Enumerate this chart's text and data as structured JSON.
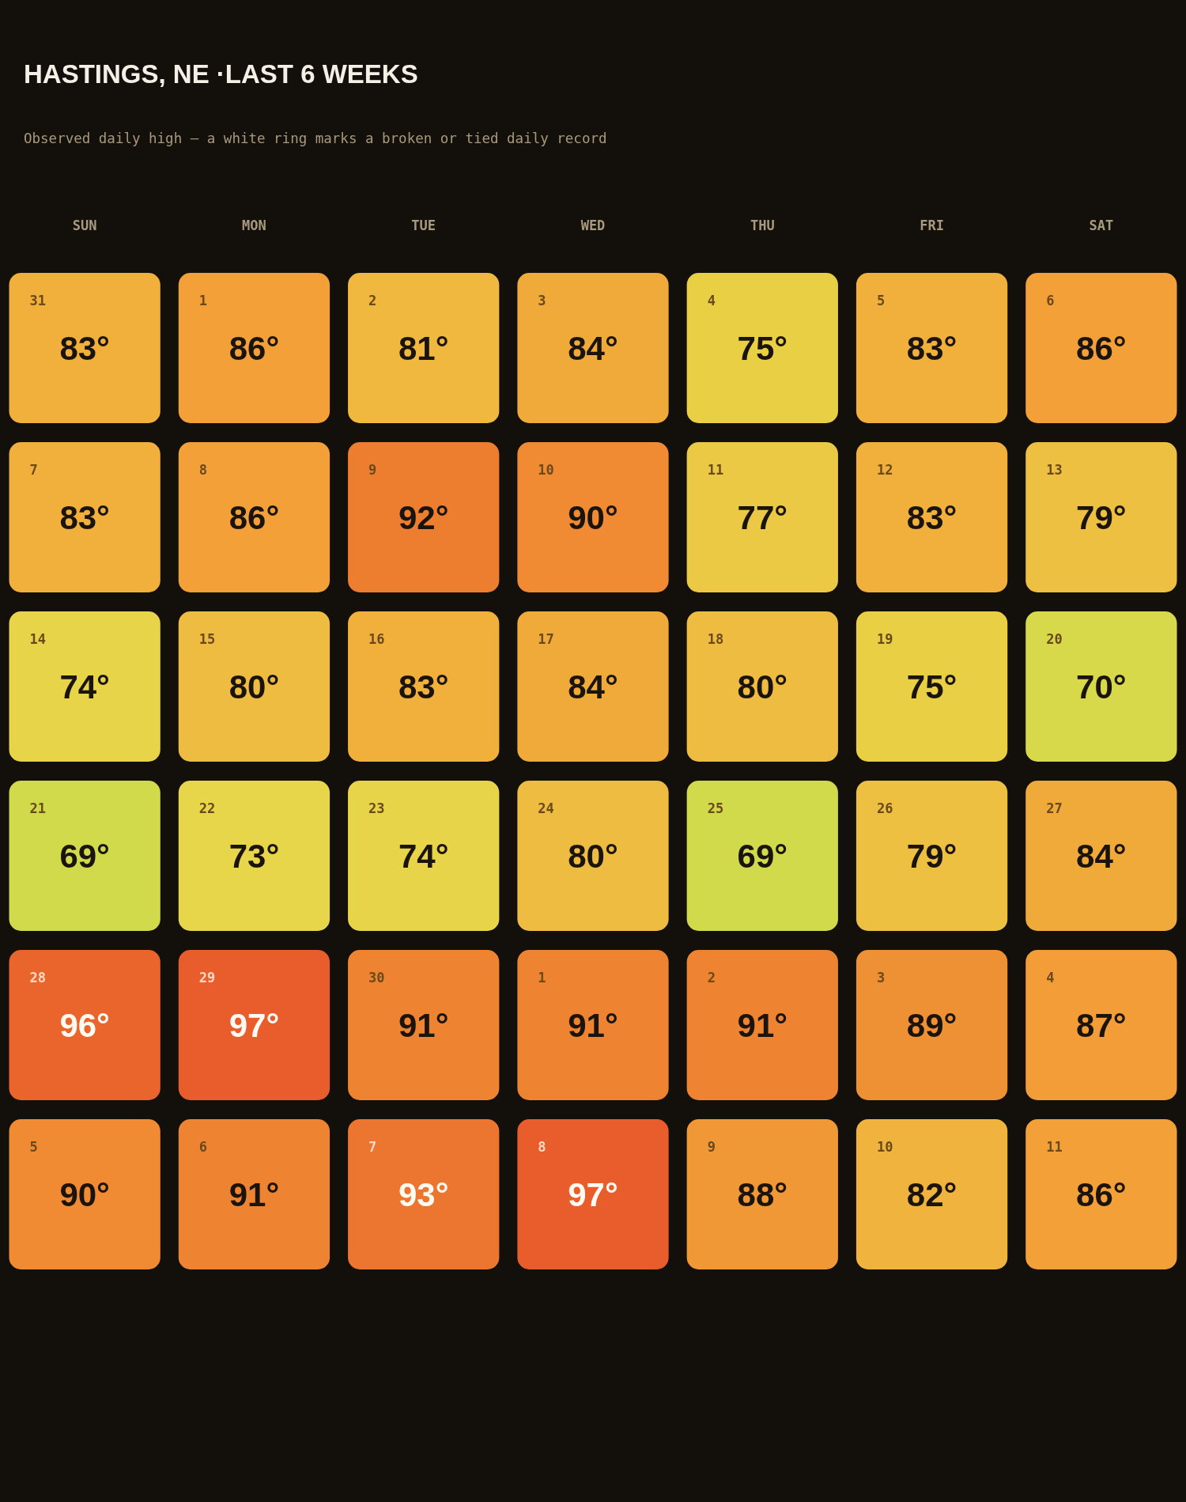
{
  "chart_data": {
    "type": "heatmap",
    "title": "HASTINGS, NE ·LAST 6 WEEKS",
    "subtitle": "Observed daily high — a white ring marks a broken or tied daily record",
    "categories": [
      "SUN",
      "MON",
      "TUE",
      "WED",
      "THU",
      "FRI",
      "SAT"
    ],
    "y_categories": [
      null,
      null,
      null,
      null,
      null,
      null
    ],
    "cells": [
      [
        83,
        86,
        81,
        84,
        75,
        83,
        86
      ],
      [
        83,
        86,
        92,
        90,
        77,
        83,
        79
      ],
      [
        74,
        80,
        83,
        84,
        80,
        75,
        70
      ],
      [
        69,
        73,
        74,
        80,
        69,
        79,
        84
      ],
      [
        96,
        97,
        91,
        91,
        91,
        89,
        87
      ],
      [
        90,
        91,
        93,
        97,
        88,
        82,
        86
      ]
    ],
    "cell_labels": [
      [
        "83°",
        "86°",
        "81°",
        "84°",
        "75°",
        "83°",
        "86°"
      ],
      [
        "83°",
        "86°",
        "92°",
        "90°",
        "77°",
        "83°",
        "79°"
      ],
      [
        "74°",
        "80°",
        "83°",
        "84°",
        "80°",
        "75°",
        "70°"
      ],
      [
        "69°",
        "73°",
        "74°",
        "80°",
        "69°",
        "79°",
        "84°"
      ],
      [
        "96°",
        "97°",
        "91°",
        "91°",
        "91°",
        "89°",
        "87°"
      ],
      [
        "90°",
        "91°",
        "93°",
        "97°",
        "88°",
        "82°",
        "86°"
      ]
    ],
    "annotations": [
      "31",
      "1",
      "2",
      "3",
      "4",
      "5",
      "6",
      "7",
      "8",
      "9",
      "10",
      "11",
      "12",
      "13",
      "14",
      "15",
      "16",
      "17",
      "18",
      "19",
      "20",
      "21",
      "22",
      "23",
      "24",
      "25",
      "26",
      "27",
      "28",
      "29",
      "30",
      "1",
      "2",
      "3",
      "4",
      "5",
      "6",
      "7",
      "8",
      "9",
      "10",
      "11"
    ],
    "colors": [
      [
        "#f0b03b",
        "#f2a037",
        "#f0b83e",
        "#f0aa3a",
        "#e9cf44",
        "#f0b03b",
        "#f2a037"
      ],
      [
        "#f0b03b",
        "#f2a037",
        "#ed7e30",
        "#f08a33",
        "#ecc945",
        "#f0b03b",
        "#edc042"
      ],
      [
        "#e8d448",
        "#eebc40",
        "#f0b03b",
        "#f0aa3a",
        "#eebc40",
        "#e9cf44",
        "#d7d94b"
      ],
      [
        "#d0da4a",
        "#e8d64a",
        "#e8d448",
        "#eebc40",
        "#d0da4a",
        "#edc042",
        "#f0aa3a"
      ],
      [
        "#ea652b",
        "#e85d2b",
        "#ee8432",
        "#ee8432",
        "#ee8432",
        "#ee9034",
        "#f29d37"
      ],
      [
        "#f08a33",
        "#ee8432",
        "#ec762f",
        "#e85d2b",
        "#f09736",
        "#f0b33d",
        "#f2a037"
      ]
    ]
  }
}
